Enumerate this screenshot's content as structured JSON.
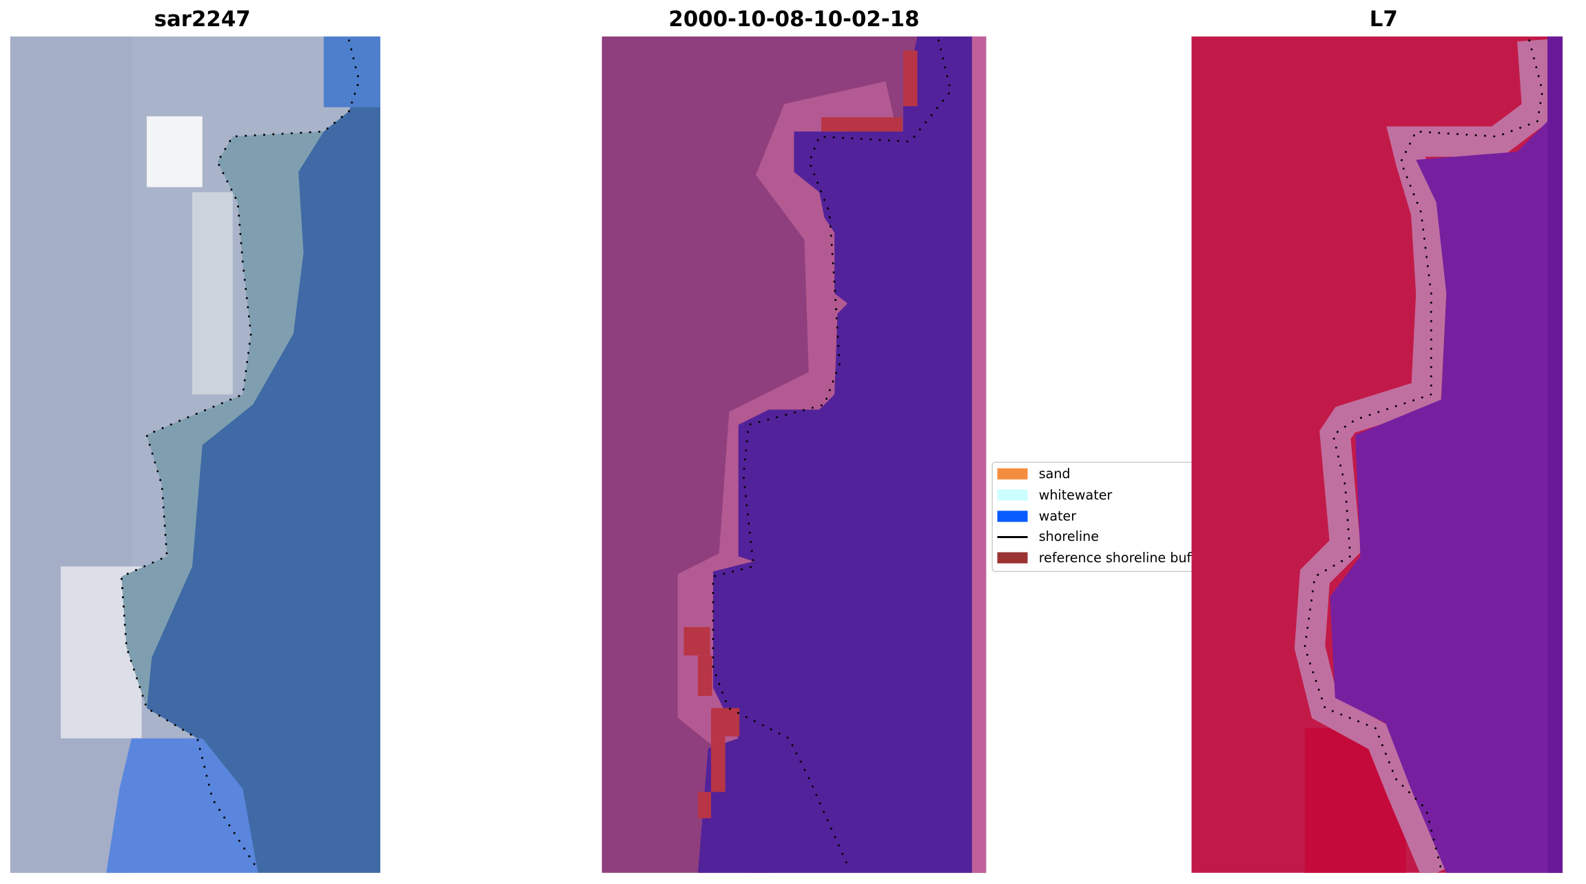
{
  "panels": [
    {
      "title": "sar2247"
    },
    {
      "title": "2000-10-08-10-02-18"
    },
    {
      "title": "L7"
    }
  ],
  "legend": {
    "items": [
      {
        "label": "sand"
      },
      {
        "label": "whitewater"
      },
      {
        "label": "water"
      },
      {
        "label": "shoreline"
      },
      {
        "label": "reference shoreline buffer"
      }
    ]
  }
}
